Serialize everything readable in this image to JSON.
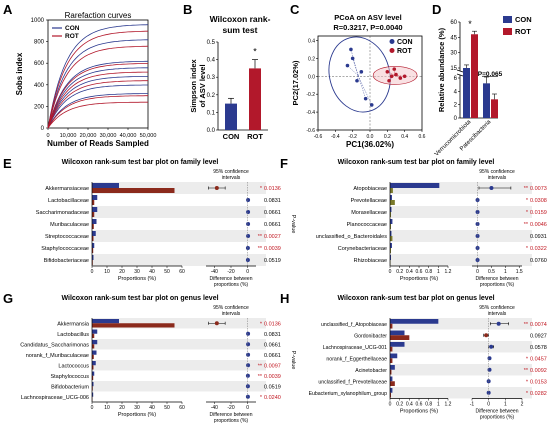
{
  "chart_data": [
    {
      "panel": "A",
      "type": "line",
      "title": "Rarefaction curves",
      "xlabel": "Number of Reads Sampled",
      "ylabel": "Sobs index",
      "x_ticks": [
        "0",
        "10,000",
        "20,000",
        "30,000",
        "40,000",
        "50,000"
      ],
      "y_ticks": [
        "0",
        "200",
        "400",
        "600",
        "800",
        "1000"
      ],
      "xlim": [
        0,
        50000
      ],
      "ylim": [
        0,
        1000
      ],
      "legend": [
        "CON",
        "ROT"
      ],
      "legend_position": "top-left",
      "series_colors": {
        "CON": "#2b3a8f",
        "ROT": "#b2182b"
      },
      "series": [
        {
          "group": "CON",
          "plateau": 960
        },
        {
          "group": "CON",
          "plateau": 820
        },
        {
          "group": "CON",
          "plateau": 620
        },
        {
          "group": "CON",
          "plateau": 560
        },
        {
          "group": "CON",
          "plateau": 480
        },
        {
          "group": "CON",
          "plateau": 400
        },
        {
          "group": "CON",
          "plateau": 320
        },
        {
          "group": "ROT",
          "plateau": 900
        },
        {
          "group": "ROT",
          "plateau": 760
        },
        {
          "group": "ROT",
          "plateau": 600
        },
        {
          "group": "ROT",
          "plateau": 520
        },
        {
          "group": "ROT",
          "plateau": 440
        },
        {
          "group": "ROT",
          "plateau": 300
        },
        {
          "group": "ROT",
          "plateau": 240
        }
      ]
    },
    {
      "panel": "B",
      "type": "bar",
      "title": "Wilcoxon rank-sum test",
      "ylabel": "Simpson index of ASV level",
      "categories": [
        "CON",
        "ROT"
      ],
      "values": [
        0.15,
        0.35
      ],
      "errors": [
        0.03,
        0.05
      ],
      "colors": [
        "#2b3a8f",
        "#b2182b"
      ],
      "y_ticks": [
        "0.0",
        "0.1",
        "0.2",
        "0.3",
        "0.4",
        "0.5"
      ],
      "ylim": [
        0,
        0.5
      ],
      "significance": "*"
    },
    {
      "panel": "C",
      "type": "scatter",
      "title": "PCoA on ASV level",
      "subtitle": "R=0.3217, P=0.0040",
      "xlabel": "PC1(36.02%)",
      "ylabel": "PC2(17.02%)",
      "x_ticks": [
        "-0.6",
        "-0.4",
        "-0.2",
        "0.0",
        "0.2",
        "0.4",
        "0.6"
      ],
      "y_ticks": [
        "-0.6",
        "-0.4",
        "-0.2",
        "0.0",
        "0.2",
        "0.4"
      ],
      "xlim": [
        -0.6,
        0.6
      ],
      "ylim": [
        -0.6,
        0.45
      ],
      "legend": [
        "CON",
        "ROT"
      ],
      "legend_position": "top-right",
      "series": [
        {
          "name": "CON",
          "color": "#2b3a8f",
          "points": [
            [
              -0.22,
              0.3
            ],
            [
              -0.26,
              0.12
            ],
            [
              -0.15,
              -0.05
            ],
            [
              -0.05,
              -0.25
            ],
            [
              0.02,
              -0.32
            ],
            [
              -0.1,
              0.05
            ],
            [
              -0.2,
              0.2
            ]
          ]
        },
        {
          "name": "ROT",
          "color": "#b2182b",
          "points": [
            [
              0.2,
              0.05
            ],
            [
              0.25,
              0.0
            ],
            [
              0.3,
              0.02
            ],
            [
              0.35,
              -0.02
            ],
            [
              0.28,
              0.08
            ],
            [
              0.22,
              -0.05
            ],
            [
              0.4,
              0.0
            ]
          ]
        }
      ]
    },
    {
      "panel": "D",
      "type": "bar",
      "ylabel": "Relative abundance (%)",
      "categories": [
        "Verrucomicrobiota",
        "Patescibacteria"
      ],
      "series": [
        {
          "name": "CON",
          "color": "#2b3a8f",
          "values": [
            15,
            5.2
          ],
          "errors": [
            3,
            1
          ]
        },
        {
          "name": "ROT",
          "color": "#b2182b",
          "values": [
            48,
            2.8
          ],
          "errors": [
            3,
            0.8
          ]
        }
      ],
      "y_ticks": [
        "0",
        "2",
        "4",
        "6",
        "15",
        "30",
        "45",
        "60"
      ],
      "broken_axis": true,
      "significance": [
        "*",
        "P=0.065"
      ],
      "legend": [
        "CON",
        "ROT"
      ],
      "legend_position": "top-right"
    },
    {
      "panel": "E",
      "type": "bar",
      "title": "Wilcoxon rank-sum test bar plot on family level",
      "ci_label": "95% confidence intervals",
      "xlabel": "Proportions (%)",
      "ci_xlabel": "Difference between proportions (%)",
      "pvalue_label": "P-value",
      "x_ticks": [
        "0",
        "10",
        "20",
        "30",
        "40",
        "50",
        "60"
      ],
      "xlim": [
        0,
        60
      ],
      "ci_ticks": [
        "-40",
        "-20",
        "0"
      ],
      "ci_lim": [
        -50,
        10
      ],
      "rows": [
        {
          "label": "Akkermansiaceae",
          "con": 18,
          "rot": 55,
          "diff": -37,
          "lo": -47,
          "hi": -27,
          "p": "0.0136",
          "sig": "*"
        },
        {
          "label": "Lactobacillaceae",
          "con": 3.5,
          "rot": 1.5,
          "diff": 0.5,
          "lo": -0.5,
          "hi": 1.5,
          "p": "0.0831",
          "sig": ""
        },
        {
          "label": "Saccharimonadaceae",
          "con": 3.5,
          "rot": 1.5,
          "diff": 0.5,
          "lo": -0.5,
          "hi": 1.5,
          "p": "0.0661",
          "sig": ""
        },
        {
          "label": "Muribaculaceae",
          "con": 3.0,
          "rot": 1.2,
          "diff": 0.5,
          "lo": -0.5,
          "hi": 1.5,
          "p": "0.0661",
          "sig": ""
        },
        {
          "label": "Streptococcaceae",
          "con": 2.5,
          "rot": 1.0,
          "diff": 0.5,
          "lo": -0.5,
          "hi": 1.5,
          "p": "0.0027",
          "sig": "**"
        },
        {
          "label": "Staphylococcaceae",
          "con": 1.5,
          "rot": 0.8,
          "diff": 0.3,
          "lo": -0.5,
          "hi": 1.0,
          "p": "0.0039",
          "sig": "**"
        },
        {
          "label": "Bifidobacteriaceae",
          "con": 1.0,
          "rot": 0.5,
          "diff": 0.3,
          "lo": -0.5,
          "hi": 1.0,
          "p": "0.0519",
          "sig": ""
        }
      ]
    },
    {
      "panel": "F",
      "type": "bar",
      "title": "Wilcoxon rank-sum test bar plot on family level",
      "ci_label": "95% confidence intervals",
      "xlabel": "Proportions (%)",
      "ci_xlabel": "Difference between proportions (%)",
      "pvalue_label": "P-value",
      "x_ticks": [
        "0",
        "0.2",
        "0.4",
        "0.6",
        "0.8",
        "1",
        "1.2"
      ],
      "xlim": [
        0,
        1.2
      ],
      "ci_ticks": [
        "0",
        "0.5",
        "1",
        "1.5"
      ],
      "ci_lim": [
        -0.2,
        1.6
      ],
      "rows": [
        {
          "label": "Atopobiaceae",
          "con": 1.02,
          "rot": 0.06,
          "diff": 0.5,
          "lo": 0.05,
          "hi": 1.2,
          "p": "0.0073",
          "sig": "**"
        },
        {
          "label": "Prevotellaceae",
          "con": 0.04,
          "rot": 0.1,
          "diff": 0.0,
          "lo": -0.04,
          "hi": 0.04,
          "p": "0.0308",
          "sig": "*"
        },
        {
          "label": "Moraxellaceae",
          "con": 0.03,
          "rot": 0.02,
          "diff": 0.0,
          "lo": -0.04,
          "hi": 0.04,
          "p": "0.0159",
          "sig": "*"
        },
        {
          "label": "Planococcaceae",
          "con": 0.05,
          "rot": 0.02,
          "diff": 0.0,
          "lo": -0.04,
          "hi": 0.04,
          "p": "0.0046",
          "sig": "**"
        },
        {
          "label": "unclassified_o_Bacteroidales",
          "con": 0.03,
          "rot": 0.05,
          "diff": 0.0,
          "lo": -0.04,
          "hi": 0.04,
          "p": "0.0931",
          "sig": ""
        },
        {
          "label": "Corynebacteriaceae",
          "con": 0.04,
          "rot": 0.02,
          "diff": 0.0,
          "lo": -0.04,
          "hi": 0.04,
          "p": "0.0322",
          "sig": "*"
        },
        {
          "label": "Rhizobiaceae",
          "con": 0.02,
          "rot": 0.01,
          "diff": 0.0,
          "lo": -0.04,
          "hi": 0.04,
          "p": "0.0760",
          "sig": ""
        }
      ]
    },
    {
      "panel": "G",
      "type": "bar",
      "title": "Wilcoxon rank-sum test bar plot on genus level",
      "ci_label": "95% confidence intervals",
      "xlabel": "Proportions (%)",
      "ci_xlabel": "Difference between proportions (%)",
      "pvalue_label": "P-value",
      "x_ticks": [
        "0",
        "10",
        "20",
        "30",
        "40",
        "50",
        "60"
      ],
      "xlim": [
        0,
        60
      ],
      "ci_ticks": [
        "-40",
        "-20",
        "0"
      ],
      "ci_lim": [
        -50,
        10
      ],
      "rows": [
        {
          "label": "Akkermansia",
          "con": 18,
          "rot": 55,
          "diff": -37,
          "lo": -47,
          "hi": -27,
          "p": "0.0136",
          "sig": "*"
        },
        {
          "label": "Lactobacillus",
          "con": 3.5,
          "rot": 1.5,
          "diff": 0.5,
          "lo": -0.5,
          "hi": 1.5,
          "p": "0.0831",
          "sig": ""
        },
        {
          "label": "Candidatus_Saccharimonas",
          "con": 3.5,
          "rot": 1.5,
          "diff": 0.5,
          "lo": -0.5,
          "hi": 1.5,
          "p": "0.0661",
          "sig": ""
        },
        {
          "label": "norank_f_Muribaculaceae",
          "con": 3.0,
          "rot": 1.2,
          "diff": 0.5,
          "lo": -0.5,
          "hi": 1.5,
          "p": "0.0661",
          "sig": ""
        },
        {
          "label": "Lactococcus",
          "con": 2.5,
          "rot": 1.0,
          "diff": 0.5,
          "lo": -0.5,
          "hi": 1.5,
          "p": "0.0097",
          "sig": "**"
        },
        {
          "label": "Staphylococcus",
          "con": 1.5,
          "rot": 0.8,
          "diff": 0.3,
          "lo": -0.5,
          "hi": 1.0,
          "p": "0.0039",
          "sig": "**"
        },
        {
          "label": "Bifidobacterium",
          "con": 1.0,
          "rot": 0.5,
          "diff": 0.3,
          "lo": -0.5,
          "hi": 1.0,
          "p": "0.0519",
          "sig": ""
        },
        {
          "label": "Lachnospiraceae_UCG-006",
          "con": 0.8,
          "rot": 0.3,
          "diff": 0.3,
          "lo": -0.5,
          "hi": 1.0,
          "p": "0.0240",
          "sig": "*"
        }
      ]
    },
    {
      "panel": "H",
      "type": "bar",
      "title": "Wilcoxon rank-sum test bar plot on genus level",
      "ci_label": "95% confidence intervals",
      "xlabel": "Proportions (%)",
      "ci_xlabel": "Difference between proportions (%)",
      "pvalue_label": "P-value",
      "x_ticks": [
        "0",
        "0.2",
        "0.4",
        "0.6",
        "0.8",
        "1",
        "1.2"
      ],
      "xlim": [
        0,
        1.2
      ],
      "ci_ticks": [
        "-1",
        "0",
        "1",
        "2"
      ],
      "ci_lim": [
        -1,
        2
      ],
      "rows": [
        {
          "label": "unclassified_f_Atopobiaceae",
          "con": 1.0,
          "rot": 0.05,
          "diff": 0.6,
          "lo": 0.1,
          "hi": 1.2,
          "p": "0.0074",
          "sig": "**"
        },
        {
          "label": "Gordonibacter",
          "con": 0.3,
          "rot": 0.4,
          "diff": -0.15,
          "lo": -0.3,
          "hi": 0.0,
          "p": "0.0927",
          "sig": ""
        },
        {
          "label": "Lachnospiraceae_UCG-001",
          "con": 0.3,
          "rot": 0.05,
          "diff": 0.15,
          "lo": 0.0,
          "hi": 0.3,
          "p": "0.0578",
          "sig": ""
        },
        {
          "label": "norank_f_Eggerthellaceae",
          "con": 0.15,
          "rot": 0.05,
          "diff": 0.05,
          "lo": 0.0,
          "hi": 0.1,
          "p": "0.0457",
          "sig": "*"
        },
        {
          "label": "Acinetobacter",
          "con": 0.1,
          "rot": 0.03,
          "diff": 0.05,
          "lo": 0.0,
          "hi": 0.1,
          "p": "0.0092",
          "sig": "**"
        },
        {
          "label": "unclassified_f_Prevotellaceae",
          "con": 0.05,
          "rot": 0.1,
          "diff": 0.0,
          "lo": -0.05,
          "hi": 0.05,
          "p": "0.0153",
          "sig": "*"
        },
        {
          "label": "Eubacterium_xylanophilum_group",
          "con": 0.05,
          "rot": 0.02,
          "diff": 0.0,
          "lo": -0.05,
          "hi": 0.05,
          "p": "0.0282",
          "sig": "*"
        }
      ]
    }
  ]
}
